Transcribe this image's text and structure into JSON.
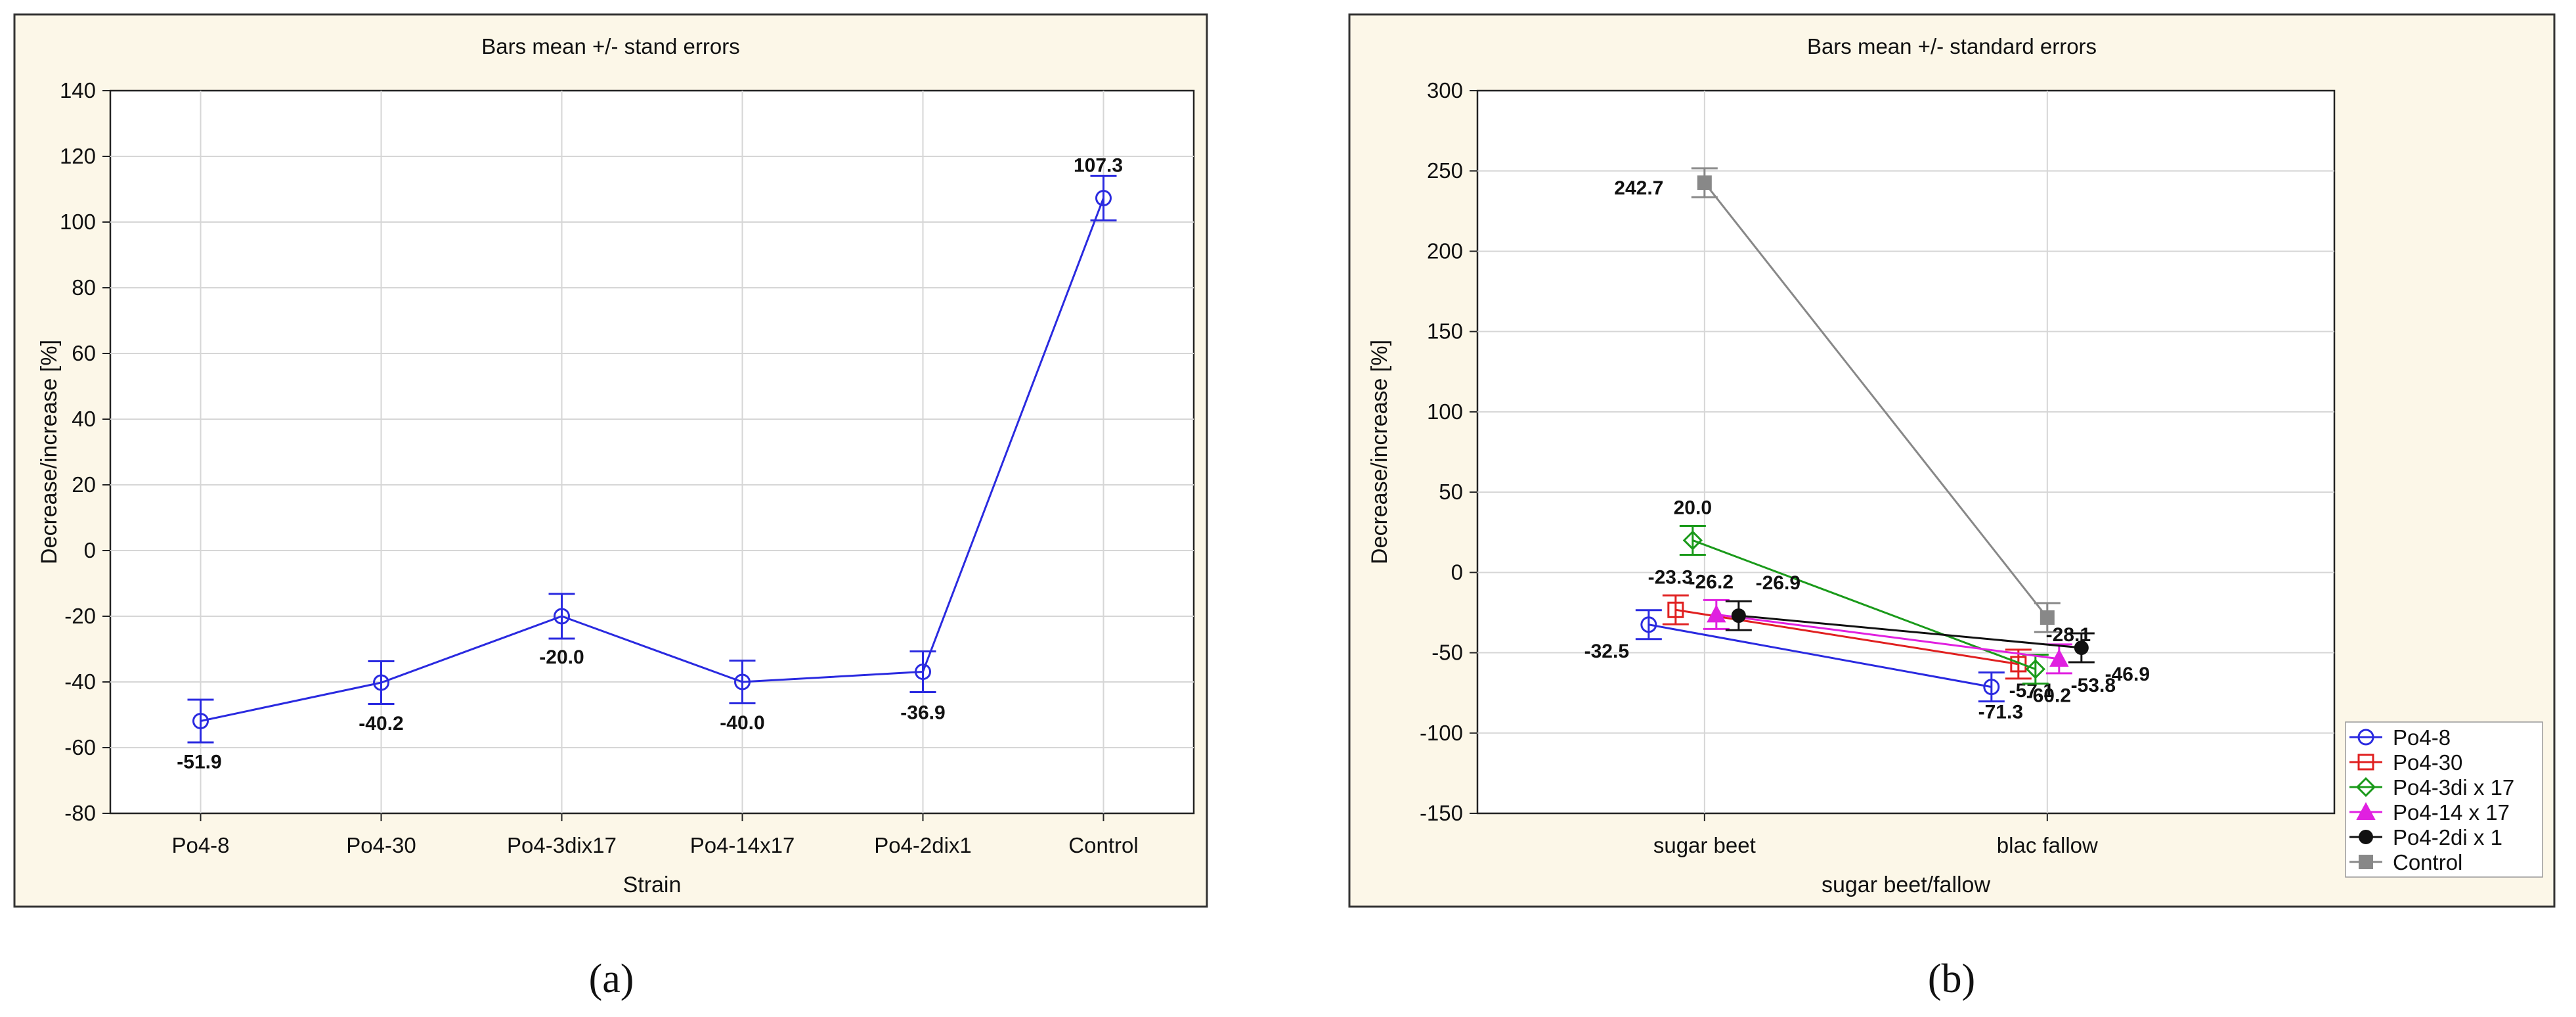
{
  "chart_data": [
    {
      "type": "line",
      "panel_label": "(a)",
      "title": "Bars mean +/- stand errors",
      "xlabel": "Strain",
      "ylabel": "Decrease/increase [%]",
      "ylim": [
        -80,
        140
      ],
      "yticks": [
        -80,
        -60,
        -40,
        -20,
        0,
        20,
        40,
        60,
        80,
        100,
        120,
        140
      ],
      "grid": true,
      "categories": [
        "Po4-8",
        "Po4-30",
        "Po4-3dix17",
        "Po4-14x17",
        "Po4-2dix1",
        "Control"
      ],
      "series": [
        {
          "color": "#2a2ae0",
          "marker": "circle",
          "values": [
            -51.9,
            -40.2,
            -20.0,
            -40.0,
            -36.9,
            107.3
          ],
          "errors": [
            6.5,
            6.5,
            6.8,
            6.5,
            6.2,
            6.8
          ],
          "labels": [
            "-51.9",
            "-40.2",
            "-20.0",
            "-40.0",
            "-36.9",
            "107.3"
          ]
        }
      ]
    },
    {
      "type": "line",
      "panel_label": "(b)",
      "title": "Bars mean +/- standard errors",
      "xlabel": "sugar beet/fallow",
      "ylabel": "Decrease/increase [%]",
      "ylim": [
        -150,
        300
      ],
      "yticks": [
        -150,
        -100,
        -50,
        0,
        50,
        100,
        150,
        200,
        250,
        300
      ],
      "grid": true,
      "categories": [
        "sugar beet",
        "blac fallow"
      ],
      "legend_position": "right-bottom",
      "series": [
        {
          "name": "Po4-8",
          "color": "#2a2ae0",
          "marker": "circle",
          "values": [
            -32.5,
            -71.3
          ],
          "errors": [
            9,
            9
          ],
          "labels": [
            "-32.5",
            "-71.3"
          ]
        },
        {
          "name": "Po4-30",
          "color": "#e02020",
          "marker": "square",
          "values": [
            -23.3,
            -57.1
          ],
          "errors": [
            9,
            9
          ],
          "labels": [
            "-23.3",
            "-57.1"
          ]
        },
        {
          "name": "Po4-3di x 17",
          "color": "#1a9a1a",
          "marker": "diamond",
          "values": [
            20.0,
            -60.2
          ],
          "errors": [
            9,
            9
          ],
          "labels": [
            "20.0",
            "-60.2"
          ]
        },
        {
          "name": "Po4-14 x 17",
          "color": "#e020e0",
          "marker": "triangle",
          "values": [
            -26.2,
            -53.8
          ],
          "errors": [
            9,
            9
          ],
          "labels": [
            "-26.2",
            "-53.8"
          ]
        },
        {
          "name": "Po4-2di x 1",
          "color": "#111111",
          "marker": "dot",
          "values": [
            -26.9,
            -46.9
          ],
          "errors": [
            9,
            9
          ],
          "labels": [
            "-26.9",
            "-46.9"
          ]
        },
        {
          "name": "Control",
          "color": "#888888",
          "marker": "filled-square",
          "values": [
            242.7,
            -28.1
          ],
          "errors": [
            9,
            9
          ],
          "labels": [
            "242.7",
            "-28.1"
          ]
        }
      ]
    }
  ]
}
